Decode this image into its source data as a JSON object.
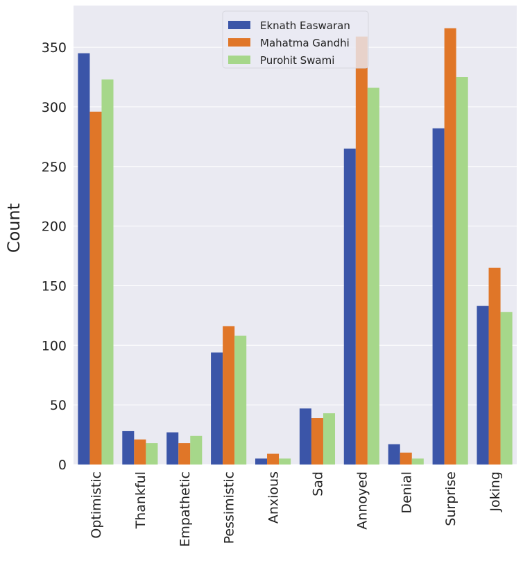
{
  "chart_data": {
    "type": "bar",
    "ylabel": "Count",
    "xlabel": "",
    "ylim": [
      0,
      385
    ],
    "yticks": [
      0,
      50,
      100,
      150,
      200,
      250,
      300,
      350
    ],
    "grid": true,
    "legend_position": "top-center",
    "categories": [
      "Optimistic",
      "Thankful",
      "Empathetic",
      "Pessimistic",
      "Anxious",
      "Sad",
      "Annoyed",
      "Denial",
      "Surprise",
      "Joking"
    ],
    "series": [
      {
        "name": "Eknath Easwaran",
        "color": "#3b55a8",
        "values": [
          345,
          28,
          27,
          94,
          5,
          47,
          265,
          17,
          282,
          133
        ]
      },
      {
        "name": "Mahatma Gandhi",
        "color": "#e07628",
        "values": [
          296,
          21,
          18,
          116,
          9,
          39,
          359,
          10,
          366,
          165
        ]
      },
      {
        "name": "Purohit Swami",
        "color": "#a6d78a",
        "values": [
          323,
          18,
          24,
          108,
          5,
          43,
          316,
          5,
          325,
          128
        ]
      }
    ],
    "background_color": "#eaeaf2",
    "grid_color": "#ffffff"
  }
}
